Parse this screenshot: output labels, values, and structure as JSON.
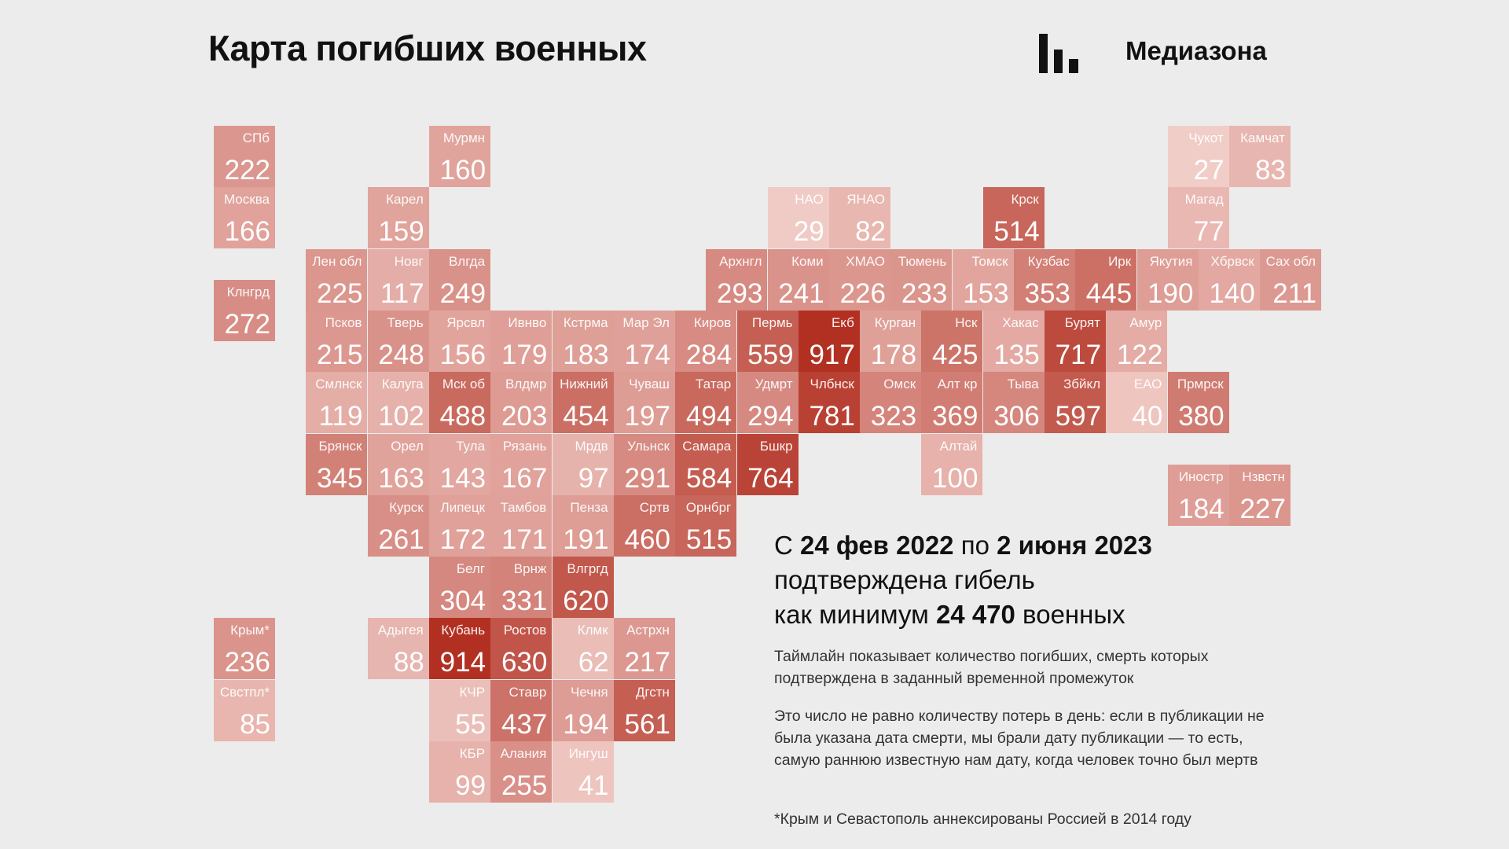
{
  "header": {
    "title": "Карта погибших военных",
    "brand": "Медиазона",
    "brand_icon": "mediazona-bars-icon"
  },
  "colors": {
    "background": "#ececec",
    "scale_low": "#f1cdc8",
    "scale_high": "#b23022"
  },
  "summary": {
    "line1_prefix": "С ",
    "date_from": "24 фев 2022",
    "line1_mid": " по ",
    "date_to": "2 июня 2023",
    "line2": "подтверждена гибель",
    "line3_prefix": "как минимум ",
    "total": "24 470",
    "line3_suffix": " военных",
    "para1": "Таймлайн показывает количество погибших, смерть которых подтверждена в заданный временной промежуток",
    "para2": "Это число не равно количеству потерь в день: если в публикации не была указана дата смерти, мы брали дату публикации — то есть, самую раннюю известную нам дату, когда человек точно был мертв",
    "footnote": "*Крым и Севастополь аннексированы Россией в 2014 году"
  },
  "chart_data": {
    "type": "heatmap",
    "title": "Карта погибших военных",
    "value_range": [
      27,
      917
    ],
    "cells": [
      {
        "label": "СПб",
        "value": 222,
        "col": 0,
        "row": 0
      },
      {
        "label": "Мурмн",
        "value": 160,
        "col": 3.5,
        "row": 0
      },
      {
        "label": "Чукот",
        "value": 27,
        "col": 15.5,
        "row": 0
      },
      {
        "label": "Камчат",
        "value": 83,
        "col": 16.5,
        "row": 0
      },
      {
        "label": "Москва",
        "value": 166,
        "col": 0,
        "row": 1
      },
      {
        "label": "Карел",
        "value": 159,
        "col": 2.5,
        "row": 1
      },
      {
        "label": "НАО",
        "value": 29,
        "col": 9,
        "row": 1
      },
      {
        "label": "ЯНАО",
        "value": 82,
        "col": 10,
        "row": 1
      },
      {
        "label": "Крск",
        "value": 514,
        "col": 12.5,
        "row": 1
      },
      {
        "label": "Магад",
        "value": 77,
        "col": 15.5,
        "row": 1
      },
      {
        "label": "Лен обл",
        "value": 225,
        "col": 1.5,
        "row": 2
      },
      {
        "label": "Новг",
        "value": 117,
        "col": 2.5,
        "row": 2
      },
      {
        "label": "Влгда",
        "value": 249,
        "col": 3.5,
        "row": 2
      },
      {
        "label": "Архнгл",
        "value": 293,
        "col": 8,
        "row": 2
      },
      {
        "label": "Коми",
        "value": 241,
        "col": 9,
        "row": 2
      },
      {
        "label": "ХМАО",
        "value": 226,
        "col": 10,
        "row": 2
      },
      {
        "label": "Тюмень",
        "value": 233,
        "col": 11,
        "row": 2
      },
      {
        "label": "Томск",
        "value": 153,
        "col": 12,
        "row": 2
      },
      {
        "label": "Кузбас",
        "value": 353,
        "col": 13,
        "row": 2
      },
      {
        "label": "Ирк",
        "value": 445,
        "col": 14,
        "row": 2
      },
      {
        "label": "Якутия",
        "value": 190,
        "col": 15,
        "row": 2
      },
      {
        "label": "Хбрвск",
        "value": 140,
        "col": 16,
        "row": 2
      },
      {
        "label": "Сах обл",
        "value": 211,
        "col": 17,
        "row": 2
      },
      {
        "label": "Клнгрд",
        "value": 272,
        "col": 0,
        "row": 2.5
      },
      {
        "label": "Псков",
        "value": 215,
        "col": 1.5,
        "row": 3
      },
      {
        "label": "Тверь",
        "value": 248,
        "col": 2.5,
        "row": 3
      },
      {
        "label": "Ярсвл",
        "value": 156,
        "col": 3.5,
        "row": 3
      },
      {
        "label": "Ивнво",
        "value": 179,
        "col": 4.5,
        "row": 3
      },
      {
        "label": "Кстрма",
        "value": 183,
        "col": 5.5,
        "row": 3
      },
      {
        "label": "Мар Эл",
        "value": 174,
        "col": 6.5,
        "row": 3
      },
      {
        "label": "Киров",
        "value": 284,
        "col": 7.5,
        "row": 3
      },
      {
        "label": "Пермь",
        "value": 559,
        "col": 8.5,
        "row": 3
      },
      {
        "label": "Екб",
        "value": 917,
        "col": 9.5,
        "row": 3
      },
      {
        "label": "Курган",
        "value": 178,
        "col": 10.5,
        "row": 3
      },
      {
        "label": "Нск",
        "value": 425,
        "col": 11.5,
        "row": 3
      },
      {
        "label": "Хакас",
        "value": 135,
        "col": 12.5,
        "row": 3
      },
      {
        "label": "Бурят",
        "value": 717,
        "col": 13.5,
        "row": 3
      },
      {
        "label": "Амур",
        "value": 122,
        "col": 14.5,
        "row": 3
      },
      {
        "label": "Смлнск",
        "value": 119,
        "col": 1.5,
        "row": 4
      },
      {
        "label": "Калуга",
        "value": 102,
        "col": 2.5,
        "row": 4
      },
      {
        "label": "Мск об",
        "value": 488,
        "col": 3.5,
        "row": 4
      },
      {
        "label": "Влдмр",
        "value": 203,
        "col": 4.5,
        "row": 4
      },
      {
        "label": "Нижний",
        "value": 454,
        "col": 5.5,
        "row": 4
      },
      {
        "label": "Чуваш",
        "value": 197,
        "col": 6.5,
        "row": 4
      },
      {
        "label": "Татар",
        "value": 494,
        "col": 7.5,
        "row": 4
      },
      {
        "label": "Удмрт",
        "value": 294,
        "col": 8.5,
        "row": 4
      },
      {
        "label": "Члбнск",
        "value": 781,
        "col": 9.5,
        "row": 4
      },
      {
        "label": "Омск",
        "value": 323,
        "col": 10.5,
        "row": 4
      },
      {
        "label": "Алт кр",
        "value": 369,
        "col": 11.5,
        "row": 4
      },
      {
        "label": "Тыва",
        "value": 306,
        "col": 12.5,
        "row": 4
      },
      {
        "label": "Збйкл",
        "value": 597,
        "col": 13.5,
        "row": 4
      },
      {
        "label": "ЕАО",
        "value": 40,
        "col": 14.5,
        "row": 4
      },
      {
        "label": "Прмрск",
        "value": 380,
        "col": 15.5,
        "row": 4
      },
      {
        "label": "Брянск",
        "value": 345,
        "col": 1.5,
        "row": 5
      },
      {
        "label": "Орел",
        "value": 163,
        "col": 2.5,
        "row": 5
      },
      {
        "label": "Тула",
        "value": 143,
        "col": 3.5,
        "row": 5
      },
      {
        "label": "Рязань",
        "value": 167,
        "col": 4.5,
        "row": 5
      },
      {
        "label": "Мрдв",
        "value": 97,
        "col": 5.5,
        "row": 5
      },
      {
        "label": "Ульнск",
        "value": 291,
        "col": 6.5,
        "row": 5
      },
      {
        "label": "Самара",
        "value": 584,
        "col": 7.5,
        "row": 5
      },
      {
        "label": "Бшкр",
        "value": 764,
        "col": 8.5,
        "row": 5
      },
      {
        "label": "Алтай",
        "value": 100,
        "col": 11.5,
        "row": 5
      },
      {
        "label": "Иностр",
        "value": 184,
        "col": 15.5,
        "row": 5.5
      },
      {
        "label": "Нзвстн",
        "value": 227,
        "col": 16.5,
        "row": 5.5
      },
      {
        "label": "Курск",
        "value": 261,
        "col": 2.5,
        "row": 6
      },
      {
        "label": "Липецк",
        "value": 172,
        "col": 3.5,
        "row": 6
      },
      {
        "label": "Тамбов",
        "value": 171,
        "col": 4.5,
        "row": 6
      },
      {
        "label": "Пенза",
        "value": 191,
        "col": 5.5,
        "row": 6
      },
      {
        "label": "Сртв",
        "value": 460,
        "col": 6.5,
        "row": 6
      },
      {
        "label": "Орнбрг",
        "value": 515,
        "col": 7.5,
        "row": 6
      },
      {
        "label": "Белг",
        "value": 304,
        "col": 3.5,
        "row": 7
      },
      {
        "label": "Врнж",
        "value": 331,
        "col": 4.5,
        "row": 7
      },
      {
        "label": "Влгргд",
        "value": 620,
        "col": 5.5,
        "row": 7
      },
      {
        "label": "Крым*",
        "value": 236,
        "col": 0,
        "row": 8
      },
      {
        "label": "Адыгея",
        "value": 88,
        "col": 2.5,
        "row": 8
      },
      {
        "label": "Кубань",
        "value": 914,
        "col": 3.5,
        "row": 8
      },
      {
        "label": "Ростов",
        "value": 630,
        "col": 4.5,
        "row": 8
      },
      {
        "label": "Клмк",
        "value": 62,
        "col": 5.5,
        "row": 8
      },
      {
        "label": "Астрхн",
        "value": 217,
        "col": 6.5,
        "row": 8
      },
      {
        "label": "Свстпл*",
        "value": 85,
        "col": 0,
        "row": 9
      },
      {
        "label": "КЧР",
        "value": 55,
        "col": 3.5,
        "row": 9
      },
      {
        "label": "Ставр",
        "value": 437,
        "col": 4.5,
        "row": 9
      },
      {
        "label": "Чечня",
        "value": 194,
        "col": 5.5,
        "row": 9
      },
      {
        "label": "Дгстн",
        "value": 561,
        "col": 6.5,
        "row": 9
      },
      {
        "label": "КБР",
        "value": 99,
        "col": 3.5,
        "row": 10
      },
      {
        "label": "Алания",
        "value": 255,
        "col": 4.5,
        "row": 10
      },
      {
        "label": "Ингуш",
        "value": 41,
        "col": 5.5,
        "row": 10
      }
    ]
  }
}
